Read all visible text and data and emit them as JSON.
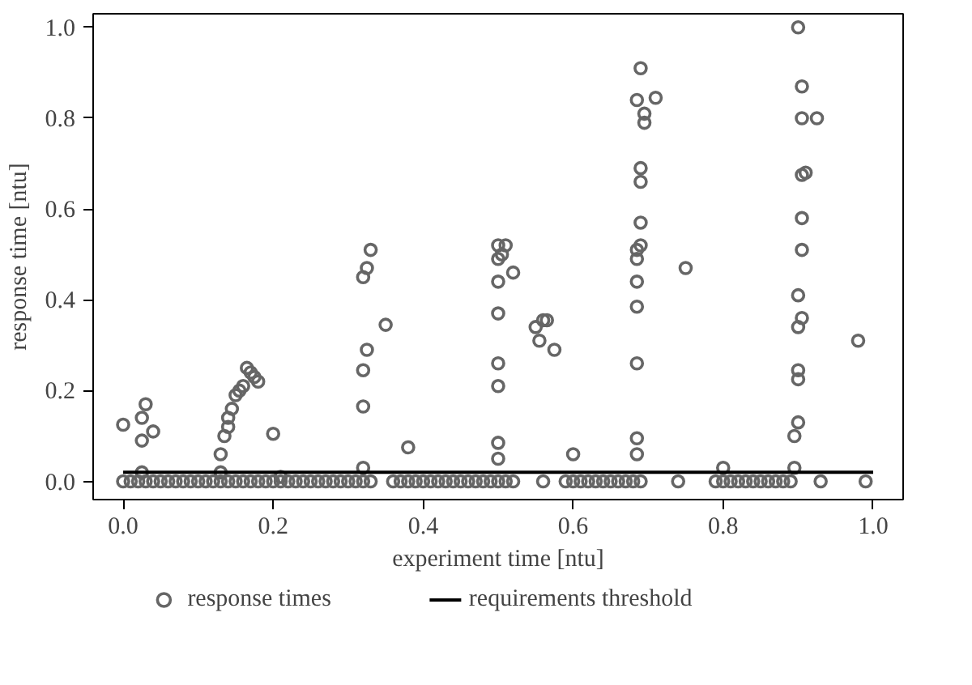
{
  "chart_data": {
    "type": "scatter",
    "xlabel": "experiment time [ntu]",
    "ylabel": "response time [ntu]",
    "xlim": [
      -0.04,
      1.04
    ],
    "ylim": [
      -0.04,
      1.03
    ],
    "xticks": [
      {
        "value": 0,
        "label": "0.0"
      },
      {
        "value": 0.2,
        "label": "0.2"
      },
      {
        "value": 0.4,
        "label": "0.4"
      },
      {
        "value": 0.6,
        "label": "0.6"
      },
      {
        "value": 0.8,
        "label": "0.8"
      },
      {
        "value": 1,
        "label": "1.0"
      }
    ],
    "yticks": [
      {
        "value": 0,
        "label": "0.0"
      },
      {
        "value": 0.2,
        "label": "0.2"
      },
      {
        "value": 0.4,
        "label": "0.4"
      },
      {
        "value": 0.6,
        "label": "0.6"
      },
      {
        "value": 0.8,
        "label": "0.8"
      },
      {
        "value": 1,
        "label": "1.0"
      }
    ],
    "grid": false,
    "legend": "bottom",
    "series": [
      {
        "name": "response times",
        "color": "#666666",
        "marker": "circle",
        "x": [
          0.0,
          0.025,
          0.03,
          0.025,
          0.04,
          0.025,
          0.13,
          0.13,
          0.135,
          0.14,
          0.14,
          0.145,
          0.15,
          0.155,
          0.16,
          0.165,
          0.17,
          0.175,
          0.18,
          0.2,
          0.21,
          0.32,
          0.32,
          0.325,
          0.32,
          0.325,
          0.33,
          0.32,
          0.35,
          0.38,
          0.5,
          0.505,
          0.51,
          0.5,
          0.5,
          0.5,
          0.52,
          0.5,
          0.5,
          0.5,
          0.5,
          0.55,
          0.56,
          0.565,
          0.555,
          0.575,
          0.6,
          0.69,
          0.685,
          0.71,
          0.695,
          0.695,
          0.69,
          0.69,
          0.69,
          0.685,
          0.69,
          0.685,
          0.685,
          0.685,
          0.685,
          0.685,
          0.685,
          0.75,
          0.8,
          0.9,
          0.905,
          0.905,
          0.925,
          0.91,
          0.905,
          0.905,
          0.905,
          0.9,
          0.9,
          0.905,
          0.9,
          0.9,
          0.9,
          0.895,
          0.895,
          0.98,
          0.0,
          0.01,
          0.02,
          0.03,
          0.04,
          0.05,
          0.06,
          0.07,
          0.08,
          0.09,
          0.1,
          0.11,
          0.12,
          0.13,
          0.14,
          0.15,
          0.16,
          0.17,
          0.18,
          0.19,
          0.2,
          0.21,
          0.22,
          0.23,
          0.24,
          0.25,
          0.26,
          0.27,
          0.28,
          0.29,
          0.3,
          0.31,
          0.32,
          0.33,
          0.36,
          0.37,
          0.38,
          0.39,
          0.4,
          0.41,
          0.42,
          0.43,
          0.44,
          0.45,
          0.46,
          0.47,
          0.48,
          0.49,
          0.5,
          0.51,
          0.52,
          0.56,
          0.59,
          0.6,
          0.61,
          0.62,
          0.63,
          0.64,
          0.65,
          0.66,
          0.67,
          0.68,
          0.69,
          0.74,
          0.79,
          0.8,
          0.81,
          0.82,
          0.83,
          0.84,
          0.85,
          0.86,
          0.87,
          0.88,
          0.89,
          0.93,
          0.99
        ],
        "values": [
          0.125,
          0.14,
          0.17,
          0.09,
          0.11,
          0.02,
          0.02,
          0.06,
          0.1,
          0.12,
          0.14,
          0.16,
          0.19,
          0.2,
          0.21,
          0.25,
          0.24,
          0.23,
          0.22,
          0.105,
          0.01,
          0.165,
          0.245,
          0.29,
          0.45,
          0.47,
          0.51,
          0.03,
          0.345,
          0.075,
          0.52,
          0.5,
          0.52,
          0.49,
          0.44,
          0.37,
          0.46,
          0.26,
          0.21,
          0.085,
          0.05,
          0.34,
          0.355,
          0.355,
          0.31,
          0.29,
          0.06,
          0.91,
          0.84,
          0.845,
          0.81,
          0.79,
          0.69,
          0.66,
          0.57,
          0.51,
          0.52,
          0.49,
          0.44,
          0.385,
          0.26,
          0.095,
          0.06,
          0.47,
          0.03,
          1.0,
          0.87,
          0.8,
          0.8,
          0.68,
          0.675,
          0.58,
          0.51,
          0.41,
          0.34,
          0.36,
          0.245,
          0.225,
          0.13,
          0.1,
          0.03,
          0.31,
          0,
          0,
          0,
          0,
          0,
          0,
          0,
          0,
          0,
          0,
          0,
          0,
          0,
          0,
          0,
          0,
          0,
          0,
          0,
          0,
          0,
          0,
          0,
          0,
          0,
          0,
          0,
          0,
          0,
          0,
          0,
          0,
          0,
          0,
          0,
          0,
          0,
          0,
          0,
          0,
          0,
          0,
          0,
          0,
          0,
          0,
          0,
          0,
          0,
          0,
          0,
          0,
          0,
          0,
          0,
          0,
          0,
          0,
          0,
          0,
          0,
          0,
          0,
          0,
          0,
          0,
          0,
          0,
          0,
          0,
          0,
          0,
          0,
          0,
          0,
          0,
          0
        ]
      },
      {
        "name": "requirements threshold",
        "color": "#000000",
        "type": "line",
        "line_style": "solid",
        "x": [
          0,
          1
        ],
        "values": [
          0.02,
          0.02
        ]
      }
    ]
  }
}
